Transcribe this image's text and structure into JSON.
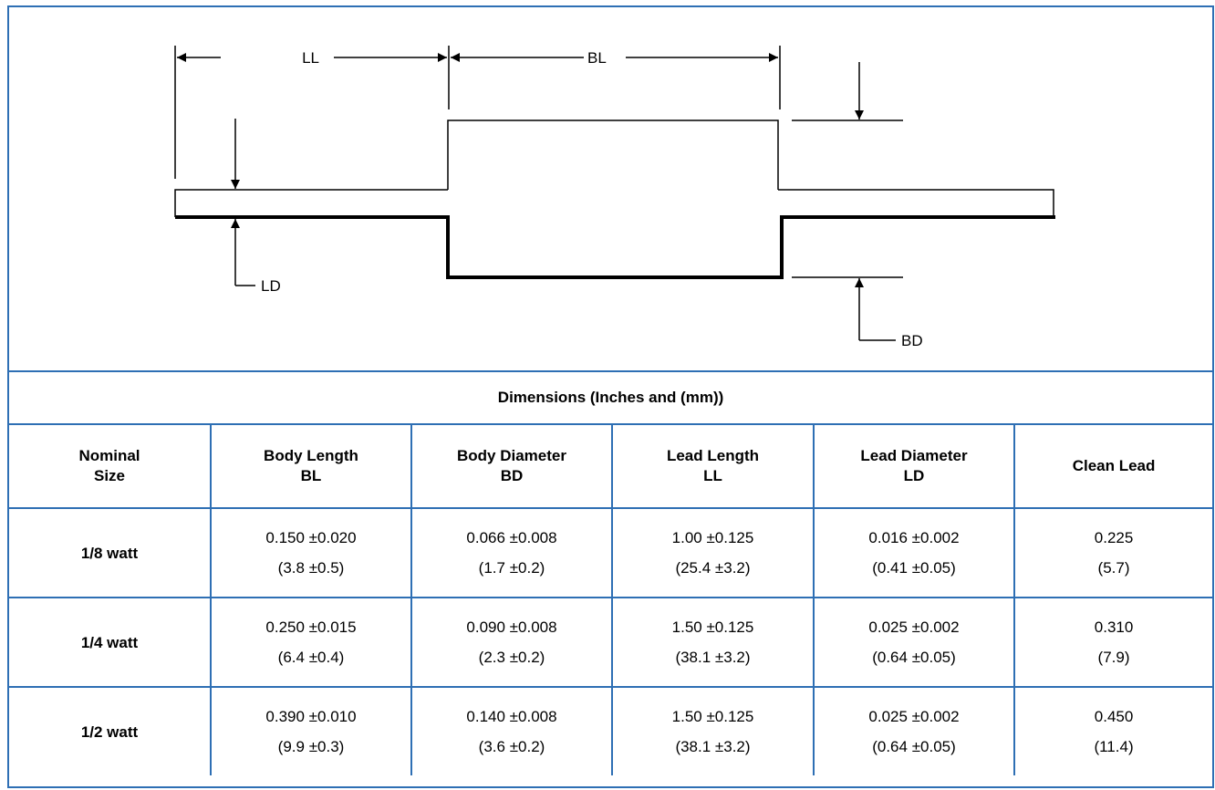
{
  "diagram": {
    "labels": {
      "ll": "LL",
      "bl": "BL",
      "ld": "LD",
      "bd": "BD"
    }
  },
  "table": {
    "title": "Dimensions (Inches and (mm))",
    "headers": [
      {
        "line1": "Nominal",
        "line2": "Size"
      },
      {
        "line1": "Body Length",
        "line2": "BL"
      },
      {
        "line1": "Body Diameter",
        "line2": "BD"
      },
      {
        "line1": "Lead Length",
        "line2": "LL"
      },
      {
        "line1": "Lead Diameter",
        "line2": "LD"
      },
      {
        "line1": "Clean Lead",
        "line2": ""
      }
    ],
    "rows": [
      {
        "size": "1/8 watt",
        "cells": [
          {
            "in": "0.150 ±0.020",
            "mm": "(3.8 ±0.5)"
          },
          {
            "in": "0.066 ±0.008",
            "mm": "(1.7 ±0.2)"
          },
          {
            "in": "1.00 ±0.125",
            "mm": "(25.4 ±3.2)"
          },
          {
            "in": "0.016 ±0.002",
            "mm": "(0.41 ±0.05)"
          },
          {
            "in": "0.225",
            "mm": "(5.7)"
          }
        ]
      },
      {
        "size": "1/4 watt",
        "cells": [
          {
            "in": "0.250 ±0.015",
            "mm": "(6.4 ±0.4)"
          },
          {
            "in": "0.090 ±0.008",
            "mm": "(2.3 ±0.2)"
          },
          {
            "in": "1.50 ±0.125",
            "mm": "(38.1 ±3.2)"
          },
          {
            "in": "0.025 ±0.002",
            "mm": "(0.64 ±0.05)"
          },
          {
            "in": "0.310",
            "mm": "(7.9)"
          }
        ]
      },
      {
        "size": "1/2 watt",
        "cells": [
          {
            "in": "0.390 ±0.010",
            "mm": "(9.9 ±0.3)"
          },
          {
            "in": "0.140 ±0.008",
            "mm": "(3.6 ±0.2)"
          },
          {
            "in": "1.50 ±0.125",
            "mm": "(38.1 ±3.2)"
          },
          {
            "in": "0.025 ±0.002",
            "mm": "(0.64 ±0.05)"
          },
          {
            "in": "0.450",
            "mm": "(11.4)"
          }
        ]
      }
    ]
  }
}
